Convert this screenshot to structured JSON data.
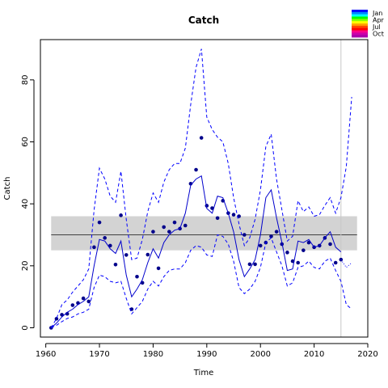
{
  "chart_data": {
    "type": "line",
    "title": "Catch",
    "xlabel": "Time",
    "ylabel": "Catch",
    "xlim": [
      1959,
      2020
    ],
    "ylim": [
      -3,
      93
    ],
    "xticks": [
      "1960",
      "1970",
      "1980",
      "1990",
      "2000",
      "2010",
      "2020"
    ],
    "yticks": [
      "0",
      "20",
      "40",
      "60",
      "80"
    ],
    "grid": false,
    "legend_position": "top-right",
    "legend": [
      {
        "label": "Jan",
        "color": "#0000ff"
      },
      {
        "label": "Apr",
        "color": "#00ff00"
      },
      {
        "label": "Jul",
        "color": "#ffa500"
      },
      {
        "label": "Oct",
        "color": "#aa00aa"
      }
    ],
    "legend_palette": [
      "#0000ff",
      "#0088ff",
      "#00ffff",
      "#00ff00",
      "#88ff00",
      "#ffff00",
      "#ffa500",
      "#ff4400",
      "#ff0000",
      "#ff0088",
      "#cc00aa",
      "#aa00aa"
    ],
    "reference_band": {
      "lower": 25,
      "upper": 36,
      "color": "#d3d3d3"
    },
    "reference_line": {
      "y": 30,
      "color": "#404040"
    },
    "vertical_line": {
      "x": 2015,
      "color": "#c8c8c8"
    },
    "series": [
      {
        "role": "observed",
        "style": "points",
        "color": "#00008b",
        "x": [
          1961,
          1962,
          1963,
          1964,
          1965,
          1966,
          1967,
          1968,
          1969,
          1970,
          1971,
          1972,
          1973,
          1974,
          1975,
          1976,
          1977,
          1978,
          1979,
          1980,
          1981,
          1982,
          1983,
          1984,
          1985,
          1986,
          1987,
          1988,
          1989,
          1990,
          1991,
          1992,
          1993,
          1994,
          1995,
          1996,
          1997,
          1998,
          1999,
          2000,
          2001,
          2002,
          2003,
          2004,
          2005,
          2006,
          2007,
          2008,
          2009,
          2010,
          2011,
          2012,
          2013,
          2014,
          2015
        ],
        "values": [
          0,
          2.9,
          4.2,
          4.5,
          7.3,
          8.0,
          9.5,
          8.5,
          26.0,
          34.0,
          29.0,
          26.5,
          20.4,
          36.3,
          23.5,
          6.0,
          16.5,
          14.5,
          23.6,
          31.0,
          19.2,
          32.5,
          31.0,
          34.0,
          32.0,
          33.0,
          46.5,
          51.0,
          61.3,
          39.4,
          38.6,
          35.4,
          41.0,
          37.0,
          36.5,
          36.0,
          30.0,
          20.5,
          20.5,
          26.5,
          27.5,
          29.5,
          31.0,
          27.0,
          24.3,
          21.5,
          21.0,
          25.0,
          27.5,
          26.0,
          26.5,
          29.0,
          27.0,
          21.0,
          22.0
        ]
      },
      {
        "role": "fitted",
        "style": "solid",
        "color": "#0000cc",
        "x": [
          1961,
          1962,
          1963,
          1964,
          1965,
          1966,
          1967,
          1968,
          1969,
          1970,
          1971,
          1972,
          1973,
          1974,
          1975,
          1976,
          1977,
          1978,
          1979,
          1980,
          1981,
          1982,
          1983,
          1984,
          1985,
          1986,
          1987,
          1988,
          1989,
          1990,
          1991,
          1992,
          1993,
          1994,
          1995,
          1996,
          1997,
          1998,
          1999,
          2000,
          2001,
          2002,
          2003,
          2004,
          2005,
          2006,
          2007,
          2008,
          2009,
          2010,
          2011,
          2012,
          2013,
          2014,
          2015
        ],
        "values": [
          0,
          1.5,
          3.5,
          5.0,
          6.0,
          7.5,
          8.5,
          10.0,
          20.0,
          28.5,
          28.0,
          25.5,
          24.0,
          28.0,
          17.0,
          10.0,
          12.5,
          15.5,
          21.0,
          25.5,
          22.5,
          27.5,
          30.0,
          31.5,
          32.0,
          37.0,
          46.0,
          48.0,
          49.0,
          38.5,
          37.0,
          42.5,
          42.0,
          37.0,
          31.0,
          22.0,
          16.5,
          19.0,
          22.0,
          30.0,
          42.0,
          44.5,
          35.5,
          27.5,
          18.5,
          19.0,
          28.0,
          27.5,
          28.5,
          26.0,
          26.5,
          29.0,
          31.0,
          26.0,
          24.5
        ]
      },
      {
        "role": "upper_bound",
        "style": "dashed",
        "color": "#0000ff",
        "x": [
          1961,
          1962,
          1963,
          1964,
          1965,
          1966,
          1967,
          1968,
          1969,
          1970,
          1971,
          1972,
          1973,
          1974,
          1975,
          1976,
          1977,
          1978,
          1979,
          1980,
          1981,
          1982,
          1983,
          1984,
          1985,
          1986,
          1987,
          1988,
          1989,
          1990,
          1991,
          1992,
          1993,
          1994,
          1995,
          1996,
          1997,
          1998,
          1999,
          2000,
          2001,
          2002,
          2003,
          2004,
          2005,
          2006,
          2007,
          2008,
          2009,
          2010,
          2011,
          2012,
          2013,
          2014,
          2015,
          2016,
          2017
        ],
        "values": [
          0,
          3.0,
          7.5,
          9.0,
          11.5,
          13.5,
          15.5,
          19.0,
          38.0,
          51.5,
          48.0,
          42.5,
          40.5,
          50.5,
          35.0,
          22.0,
          22.5,
          28.5,
          37.5,
          43.5,
          40.5,
          47.0,
          51.0,
          53.0,
          53.0,
          58.0,
          72.0,
          84.0,
          90.0,
          68.0,
          64.0,
          61.5,
          60.0,
          53.0,
          42.0,
          33.5,
          26.5,
          29.0,
          35.0,
          44.5,
          58.5,
          62.5,
          48.0,
          38.0,
          28.0,
          29.5,
          41.0,
          37.5,
          39.0,
          36.0,
          36.5,
          39.5,
          42.0,
          37.0,
          42.0,
          52.0,
          74.5
        ]
      },
      {
        "role": "lower_bound",
        "style": "dashed",
        "color": "#0000ff",
        "x": [
          1961,
          1962,
          1963,
          1964,
          1965,
          1966,
          1967,
          1968,
          1969,
          1970,
          1971,
          1972,
          1973,
          1974,
          1975,
          1976,
          1977,
          1978,
          1979,
          1980,
          1981,
          1982,
          1983,
          1984,
          1985,
          1986,
          1987,
          1988,
          1989,
          1990,
          1991,
          1992,
          1993,
          1994,
          1995,
          1996,
          1997,
          1998,
          1999,
          2000,
          2001,
          2002,
          2003,
          2004,
          2005,
          2006,
          2007,
          2008,
          2009,
          2010,
          2011,
          2012,
          2013,
          2014,
          2015,
          2016,
          2017
        ],
        "values": [
          0,
          0.8,
          2.0,
          3.0,
          3.5,
          4.5,
          5.0,
          6.0,
          13.0,
          17.0,
          16.5,
          15.0,
          14.5,
          15.0,
          9.5,
          4.5,
          6.5,
          8.5,
          12.5,
          15.0,
          13.5,
          16.5,
          18.5,
          19.0,
          19.0,
          21.0,
          25.0,
          26.5,
          26.0,
          23.5,
          23.0,
          30.0,
          29.5,
          27.0,
          21.5,
          13.0,
          11.0,
          12.5,
          15.0,
          19.5,
          27.5,
          29.0,
          24.5,
          20.0,
          13.5,
          14.5,
          19.5,
          20.0,
          21.5,
          19.5,
          19.0,
          21.5,
          22.5,
          18.5,
          15.0,
          7.5,
          6.0
        ]
      },
      {
        "role": "projection",
        "style": "dotted",
        "color": "#0000ff",
        "x": [
          2015,
          2016,
          2017
        ],
        "values": [
          22.0,
          19.5,
          21.0
        ]
      }
    ]
  }
}
